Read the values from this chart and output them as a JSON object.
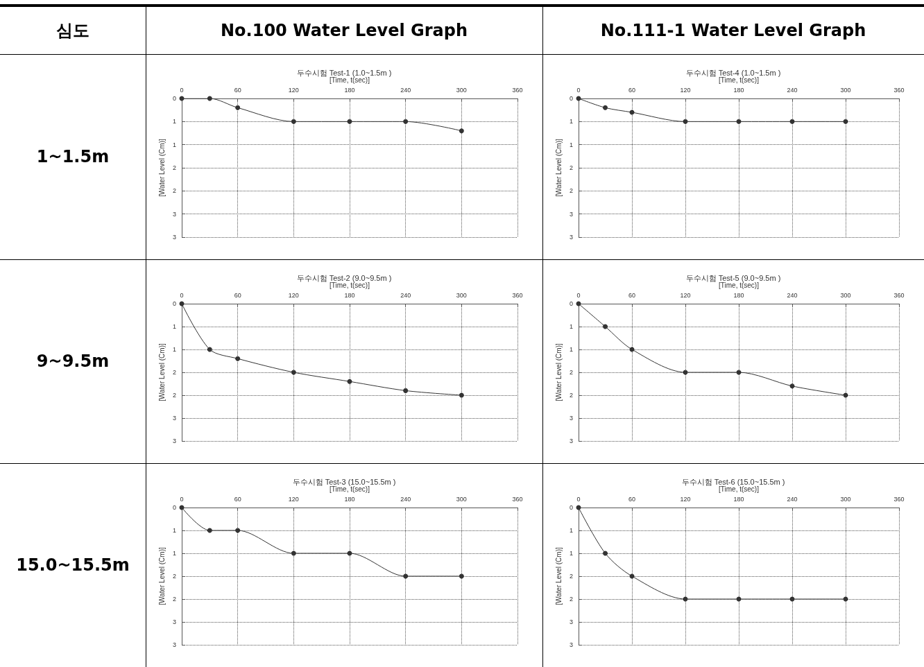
{
  "chart_data": [
    {
      "type": "other",
      "annotations": [
        "심도",
        "No.100 Water Level Graph",
        "No.111-1 Water Level Graph",
        "1~1.5m",
        "9~9.5m",
        "15.0~15.5m"
      ]
    },
    {
      "type": "line",
      "title": "두수시험 Test-1 (1.0~1.5m )",
      "xlabel": "[Time, t(sec)]",
      "ylabel": "[Water Level (Cm)]",
      "x": [
        0,
        30,
        60,
        120,
        180,
        240,
        300
      ],
      "series": [
        {
          "color": "#333333",
          "values": [
            0,
            0,
            0.2,
            0.5,
            0.5,
            0.5,
            0.7
          ]
        }
      ],
      "xlim": [
        0,
        360
      ],
      "xticks": [
        0,
        60,
        120,
        180,
        240,
        300,
        360
      ],
      "ylim": [
        3,
        0
      ],
      "yticks": [
        0,
        {
          "value": 0.5,
          "label": "1"
        },
        1,
        {
          "value": 1.5,
          "label": "2"
        },
        2,
        {
          "value": 2.5,
          "label": "3"
        },
        3
      ],
      "grid": true,
      "marker": "circle"
    },
    {
      "type": "line",
      "title": "두수시험 Test-4 (1.0~1.5m )",
      "xlabel": "[Time, t(sec)]",
      "ylabel": "[Water Level (Cm)]",
      "x": [
        0,
        30,
        60,
        120,
        180,
        240,
        300
      ],
      "series": [
        {
          "color": "#333333",
          "values": [
            0,
            0.2,
            0.3,
            0.5,
            0.5,
            0.5,
            0.5
          ]
        }
      ],
      "xlim": [
        0,
        360
      ],
      "xticks": [
        0,
        60,
        120,
        180,
        240,
        300,
        360
      ],
      "ylim": [
        3,
        0
      ],
      "yticks": [
        0,
        {
          "value": 0.5,
          "label": "1"
        },
        1,
        {
          "value": 1.5,
          "label": "2"
        },
        2,
        {
          "value": 2.5,
          "label": "3"
        },
        3
      ],
      "grid": true,
      "marker": "circle"
    },
    {
      "type": "line",
      "title": "두수시험 Test-2 (9.0~9.5m )",
      "xlabel": "[Time, t(sec)]",
      "ylabel": "[Water Level (Cm)]",
      "x": [
        0,
        30,
        60,
        120,
        180,
        240,
        300
      ],
      "series": [
        {
          "color": "#333333",
          "values": [
            0,
            1.0,
            1.2,
            1.5,
            1.7,
            1.9,
            2.0
          ]
        }
      ],
      "xlim": [
        0,
        360
      ],
      "xticks": [
        0,
        60,
        120,
        180,
        240,
        300,
        360
      ],
      "ylim": [
        3,
        0
      ],
      "yticks": [
        0,
        {
          "value": 0.5,
          "label": "1"
        },
        1,
        {
          "value": 1.5,
          "label": "2"
        },
        2,
        {
          "value": 2.5,
          "label": "3"
        },
        3
      ],
      "grid": true,
      "marker": "circle"
    },
    {
      "type": "line",
      "title": "두수시험 Test-5 (9.0~9.5m )",
      "xlabel": "[Time, t(sec)]",
      "ylabel": "[Water Level (Cm)]",
      "x": [
        0,
        30,
        60,
        120,
        180,
        240,
        300
      ],
      "series": [
        {
          "color": "#333333",
          "values": [
            0,
            0.5,
            1.0,
            1.5,
            1.5,
            1.8,
            2.0
          ]
        }
      ],
      "xlim": [
        0,
        360
      ],
      "xticks": [
        0,
        60,
        120,
        180,
        240,
        300,
        360
      ],
      "ylim": [
        3,
        0
      ],
      "yticks": [
        0,
        {
          "value": 0.5,
          "label": "1"
        },
        1,
        {
          "value": 1.5,
          "label": "2"
        },
        2,
        {
          "value": 2.5,
          "label": "3"
        },
        3
      ],
      "grid": true,
      "marker": "circle"
    },
    {
      "type": "line",
      "title": "두수시험 Test-3 (15.0~15.5m )",
      "xlabel": "[Time, t(sec)]",
      "ylabel": "[Water Level (Cm)]",
      "x": [
        0,
        30,
        60,
        120,
        180,
        240,
        300
      ],
      "series": [
        {
          "color": "#333333",
          "values": [
            0,
            0.5,
            0.5,
            1.0,
            1.0,
            1.5,
            1.5
          ]
        }
      ],
      "xlim": [
        0,
        360
      ],
      "xticks": [
        0,
        60,
        120,
        180,
        240,
        300,
        360
      ],
      "ylim": [
        3,
        0
      ],
      "yticks": [
        0,
        {
          "value": 0.5,
          "label": "1"
        },
        1,
        {
          "value": 1.5,
          "label": "2"
        },
        2,
        {
          "value": 2.5,
          "label": "3"
        },
        3
      ],
      "grid": true,
      "marker": "circle"
    },
    {
      "type": "line",
      "title": "두수시험 Test-6 (15.0~15.5m )",
      "xlabel": "[Time, t(sec)]",
      "ylabel": "[Water Level (Cm)]",
      "x": [
        0,
        30,
        60,
        120,
        180,
        240,
        300
      ],
      "series": [
        {
          "color": "#333333",
          "values": [
            0,
            1.0,
            1.5,
            2.0,
            2.0,
            2.0,
            2.0
          ]
        }
      ],
      "xlim": [
        0,
        360
      ],
      "xticks": [
        0,
        60,
        120,
        180,
        240,
        300,
        360
      ],
      "ylim": [
        3,
        0
      ],
      "yticks": [
        0,
        {
          "value": 0.5,
          "label": "1"
        },
        1,
        {
          "value": 1.5,
          "label": "2"
        },
        2,
        {
          "value": 2.5,
          "label": "3"
        },
        3
      ],
      "grid": true,
      "marker": "circle"
    }
  ]
}
